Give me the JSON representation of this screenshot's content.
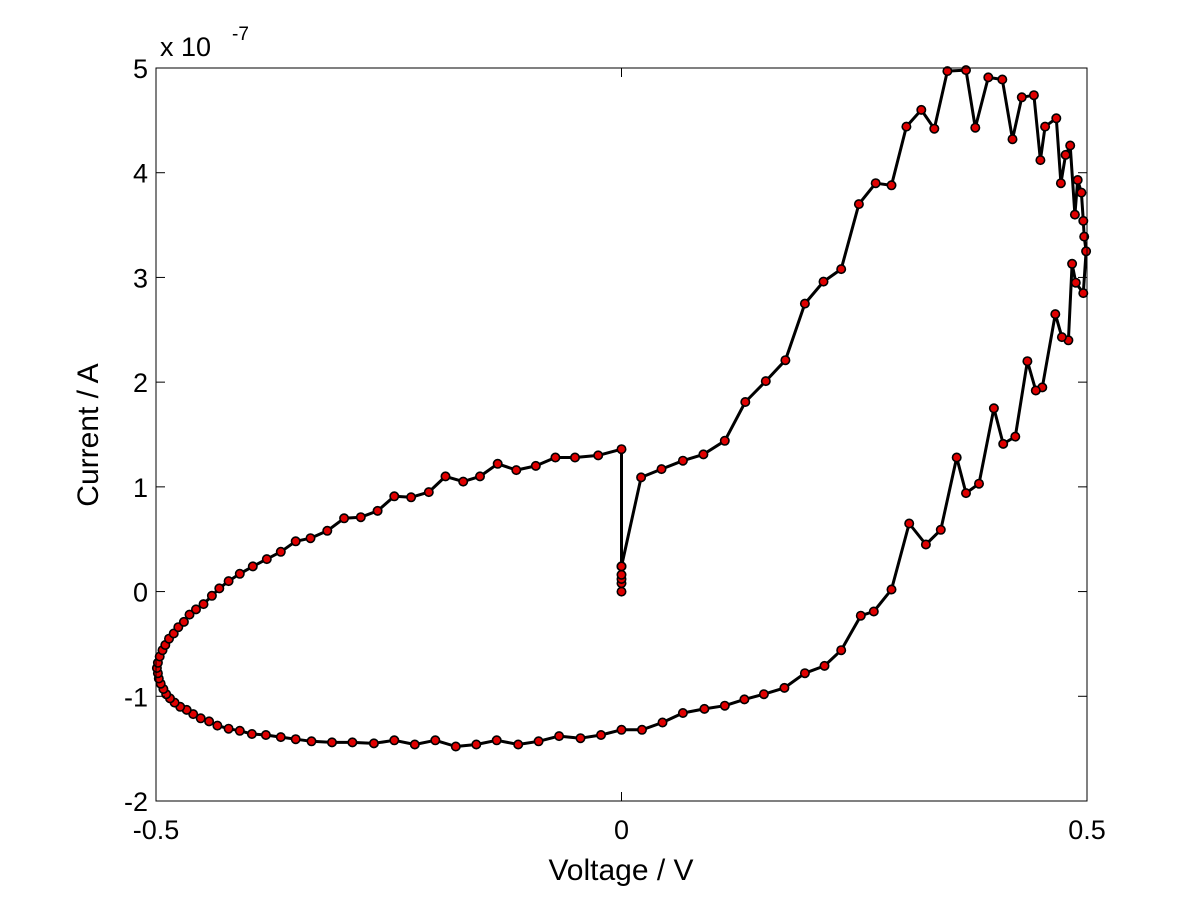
{
  "chart_data": {
    "type": "line",
    "xlabel": "Voltage / V",
    "ylabel": "Current / A",
    "y_multiplier": "x 10",
    "y_exponent": "-7",
    "xlim": [
      -0.5,
      0.5
    ],
    "ylim": [
      -2,
      5
    ],
    "xticks": [
      -0.5,
      0,
      0.5
    ],
    "xtick_labels": [
      "-0.5",
      "0",
      "0.5"
    ],
    "yticks": [
      -2,
      -1,
      0,
      1,
      2,
      3,
      4,
      5
    ],
    "ytick_labels": [
      "-2",
      "-1",
      "0",
      "1",
      "2",
      "3",
      "4",
      "5"
    ],
    "grid": false,
    "colors": {
      "line": "#000000",
      "marker_fill": "#e00000",
      "marker_edge": "#000000"
    },
    "series": [
      {
        "points": [
          [
            0.0,
            0.0
          ],
          [
            0.0,
            0.08
          ],
          [
            0.0,
            0.12
          ],
          [
            0.0,
            0.16
          ],
          [
            0.0,
            0.24
          ],
          [
            0.021,
            1.09
          ],
          [
            0.043,
            1.17
          ],
          [
            0.066,
            1.25
          ],
          [
            0.088,
            1.31
          ],
          [
            0.111,
            1.44
          ],
          [
            0.133,
            1.81
          ],
          [
            0.155,
            2.01
          ],
          [
            0.176,
            2.21
          ],
          [
            0.197,
            2.75
          ],
          [
            0.217,
            2.96
          ],
          [
            0.236,
            3.08
          ],
          [
            0.255,
            3.7
          ],
          [
            0.273,
            3.9
          ],
          [
            0.29,
            3.88
          ],
          [
            0.306,
            4.44
          ],
          [
            0.322,
            4.6
          ],
          [
            0.336,
            4.42
          ],
          [
            0.35,
            4.97
          ],
          [
            0.37,
            4.98
          ],
          [
            0.38,
            4.43
          ],
          [
            0.394,
            4.91
          ],
          [
            0.409,
            4.89
          ],
          [
            0.42,
            4.32
          ],
          [
            0.43,
            4.72
          ],
          [
            0.443,
            4.74
          ],
          [
            0.45,
            4.12
          ],
          [
            0.455,
            4.44
          ],
          [
            0.467,
            4.52
          ],
          [
            0.472,
            3.9
          ],
          [
            0.477,
            4.17
          ],
          [
            0.482,
            4.26
          ],
          [
            0.487,
            3.6
          ],
          [
            0.49,
            3.93
          ],
          [
            0.494,
            3.81
          ],
          [
            0.496,
            3.54
          ],
          [
            0.497,
            3.39
          ],
          [
            0.499,
            3.25
          ],
          [
            0.496,
            2.85
          ],
          [
            0.488,
            2.95
          ],
          [
            0.484,
            3.13
          ],
          [
            0.48,
            2.4
          ],
          [
            0.473,
            2.43
          ],
          [
            0.466,
            2.65
          ],
          [
            0.452,
            1.95
          ],
          [
            0.445,
            1.92
          ],
          [
            0.436,
            2.2
          ],
          [
            0.423,
            1.48
          ],
          [
            0.41,
            1.41
          ],
          [
            0.4,
            1.75
          ],
          [
            0.384,
            1.03
          ],
          [
            0.37,
            0.94
          ],
          [
            0.36,
            1.28
          ],
          [
            0.343,
            0.59
          ],
          [
            0.327,
            0.45
          ],
          [
            0.309,
            0.65
          ],
          [
            0.29,
            0.02
          ],
          [
            0.271,
            -0.19
          ],
          [
            0.257,
            -0.23
          ],
          [
            0.236,
            -0.56
          ],
          [
            0.218,
            -0.71
          ],
          [
            0.197,
            -0.78
          ],
          [
            0.175,
            -0.92
          ],
          [
            0.153,
            -0.98
          ],
          [
            0.132,
            -1.03
          ],
          [
            0.111,
            -1.09
          ],
          [
            0.089,
            -1.12
          ],
          [
            0.066,
            -1.16
          ],
          [
            0.044,
            -1.25
          ],
          [
            0.022,
            -1.32
          ],
          [
            0.0,
            -1.32
          ],
          [
            -0.022,
            -1.37
          ],
          [
            -0.044,
            -1.4
          ],
          [
            -0.067,
            -1.38
          ],
          [
            -0.089,
            -1.43
          ],
          [
            -0.111,
            -1.46
          ],
          [
            -0.134,
            -1.42
          ],
          [
            -0.156,
            -1.46
          ],
          [
            -0.178,
            -1.48
          ],
          [
            -0.2,
            -1.42
          ],
          [
            -0.222,
            -1.46
          ],
          [
            -0.244,
            -1.42
          ],
          [
            -0.266,
            -1.45
          ],
          [
            -0.289,
            -1.44
          ],
          [
            -0.311,
            -1.44
          ],
          [
            -0.333,
            -1.43
          ],
          [
            -0.35,
            -1.41
          ],
          [
            -0.366,
            -1.39
          ],
          [
            -0.382,
            -1.37
          ],
          [
            -0.397,
            -1.36
          ],
          [
            -0.41,
            -1.33
          ],
          [
            -0.422,
            -1.31
          ],
          [
            -0.434,
            -1.28
          ],
          [
            -0.443,
            -1.24
          ],
          [
            -0.452,
            -1.21
          ],
          [
            -0.46,
            -1.17
          ],
          [
            -0.467,
            -1.13
          ],
          [
            -0.474,
            -1.1
          ],
          [
            -0.48,
            -1.06
          ],
          [
            -0.485,
            -1.02
          ],
          [
            -0.489,
            -0.98
          ],
          [
            -0.492,
            -0.93
          ],
          [
            -0.495,
            -0.88
          ],
          [
            -0.497,
            -0.83
          ],
          [
            -0.498,
            -0.78
          ],
          [
            -0.499,
            -0.73
          ],
          [
            -0.498,
            -0.68
          ],
          [
            -0.496,
            -0.62
          ],
          [
            -0.493,
            -0.56
          ],
          [
            -0.49,
            -0.51
          ],
          [
            -0.486,
            -0.45
          ],
          [
            -0.481,
            -0.4
          ],
          [
            -0.476,
            -0.34
          ],
          [
            -0.47,
            -0.29
          ],
          [
            -0.464,
            -0.22
          ],
          [
            -0.457,
            -0.17
          ],
          [
            -0.449,
            -0.12
          ],
          [
            -0.44,
            -0.04
          ],
          [
            -0.432,
            0.03
          ],
          [
            -0.422,
            0.1
          ],
          [
            -0.41,
            0.17
          ],
          [
            -0.396,
            0.24
          ],
          [
            -0.381,
            0.31
          ],
          [
            -0.366,
            0.38
          ],
          [
            -0.35,
            0.48
          ],
          [
            -0.334,
            0.51
          ],
          [
            -0.316,
            0.58
          ],
          [
            -0.298,
            0.7
          ],
          [
            -0.28,
            0.71
          ],
          [
            -0.262,
            0.77
          ],
          [
            -0.244,
            0.91
          ],
          [
            -0.226,
            0.9
          ],
          [
            -0.207,
            0.95
          ],
          [
            -0.189,
            1.1
          ],
          [
            -0.17,
            1.05
          ],
          [
            -0.152,
            1.1
          ],
          [
            -0.133,
            1.22
          ],
          [
            -0.113,
            1.16
          ],
          [
            -0.092,
            1.2
          ],
          [
            -0.071,
            1.28
          ],
          [
            -0.05,
            1.28
          ],
          [
            -0.025,
            1.3
          ],
          [
            0.0,
            1.36
          ],
          [
            0.0,
            0.24
          ]
        ]
      }
    ]
  }
}
